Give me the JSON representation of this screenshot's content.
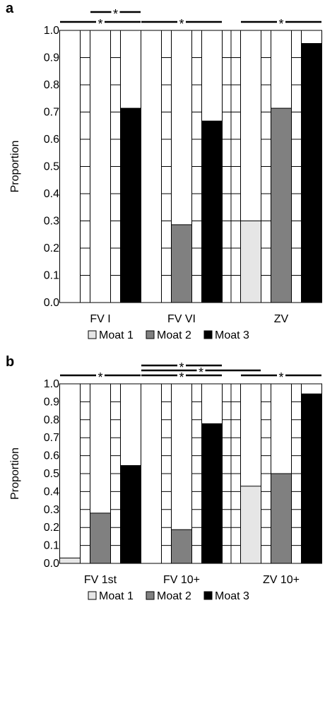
{
  "chart_data": [
    {
      "panel_label": "a",
      "type": "bar",
      "stacked_proportion": true,
      "ylabel": "Proportion",
      "ylim": [
        0,
        1.0
      ],
      "yticks": [
        "0.0",
        "0.1",
        "0.2",
        "0.3",
        "0.4",
        "0.5",
        "0.6",
        "0.7",
        "0.8",
        "0.9",
        "1.0"
      ],
      "categories": [
        "FV I",
        "FV VI",
        "ZV"
      ],
      "series": [
        {
          "name": "Moat 1",
          "color": "#e6e6e6",
          "values": [
            0.0,
            0.0,
            0.3
          ]
        },
        {
          "name": "Moat 2",
          "color": "#808080",
          "values": [
            0.0,
            0.286,
            0.714
          ]
        },
        {
          "name": "Moat 3",
          "color": "#000000",
          "values": [
            0.714,
            0.667,
            0.952
          ]
        }
      ],
      "significance": [
        {
          "from": [
            0,
            0
          ],
          "to": [
            0,
            2
          ],
          "label": "*",
          "level": 0
        },
        {
          "from": [
            0,
            1
          ],
          "to": [
            0,
            2
          ],
          "label": "*",
          "level": 1
        },
        {
          "from": [
            1,
            0
          ],
          "to": [
            1,
            2
          ],
          "label": "*",
          "level": 0
        },
        {
          "from": [
            2,
            0
          ],
          "to": [
            2,
            2
          ],
          "label": "*",
          "level": 0
        }
      ],
      "legend": "bottom",
      "grid": true
    },
    {
      "panel_label": "b",
      "type": "bar",
      "stacked_proportion": true,
      "ylabel": "Proportion",
      "ylim": [
        0,
        1.0
      ],
      "yticks": [
        "0.0",
        "0.1",
        "0.2",
        "0.3",
        "0.4",
        "0.5",
        "0.6",
        "0.7",
        "0.8",
        "0.9",
        "1.0"
      ],
      "categories": [
        "FV 1st",
        "FV 10+",
        "ZV 10+"
      ],
      "series": [
        {
          "name": "Moat 1",
          "color": "#e6e6e6",
          "values": [
            0.03,
            0.0,
            0.43
          ]
        },
        {
          "name": "Moat 2",
          "color": "#808080",
          "values": [
            0.28,
            0.188,
            0.5
          ]
        },
        {
          "name": "Moat 3",
          "color": "#000000",
          "values": [
            0.545,
            0.778,
            0.944
          ]
        }
      ],
      "significance": [
        {
          "from": [
            0,
            0
          ],
          "to": [
            0,
            2
          ],
          "label": "*",
          "level": 0
        },
        {
          "from": [
            1,
            0
          ],
          "to": [
            1,
            2
          ],
          "label": "*",
          "level": 0
        },
        {
          "from": [
            1,
            0
          ],
          "to": [
            1,
            2
          ],
          "label": "*",
          "level": 1
        },
        {
          "from": [
            1,
            0
          ],
          "to": [
            2,
            0
          ],
          "label": "*",
          "level": 0.5
        },
        {
          "from": [
            2,
            0
          ],
          "to": [
            2,
            2
          ],
          "label": "*",
          "level": 0
        }
      ],
      "legend": "bottom",
      "grid": true
    }
  ]
}
